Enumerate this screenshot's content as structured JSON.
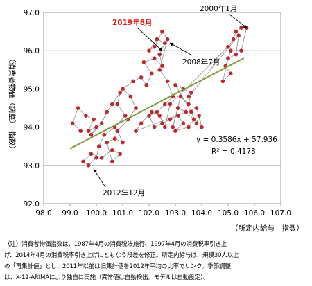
{
  "chart_data": {
    "type": "scatter",
    "xlim": [
      98.0,
      107.0
    ],
    "ylim": [
      92.0,
      97.0
    ],
    "xticks": [
      "98.0",
      "99.0",
      "100.0",
      "101.0",
      "102.0",
      "103.0",
      "104.0",
      "105.0",
      "106.0",
      "107.0"
    ],
    "yticks": [
      "92.0",
      "93.0",
      "94.0",
      "95.0",
      "96.0",
      "97.0"
    ],
    "xlabel": "（所定内給与　指数）",
    "ylabel": "（消費者物価（調整）　指数）",
    "grid": "horizontal",
    "series": [
      {
        "color": "#c0282e",
        "points": [
          [
            99.4,
            93.9
          ],
          [
            99.1,
            94.1
          ],
          [
            99.3,
            94.5
          ],
          [
            99.6,
            94.3
          ],
          [
            99.9,
            94.2
          ],
          [
            99.7,
            93.9
          ],
          [
            100.0,
            94.0
          ],
          [
            99.8,
            93.8
          ],
          [
            100.2,
            94.1
          ],
          [
            100.4,
            94.4
          ],
          [
            100.6,
            94.6
          ],
          [
            100.9,
            94.9
          ],
          [
            100.8,
            94.6
          ],
          [
            101.1,
            94.3
          ],
          [
            100.7,
            94.0
          ],
          [
            100.3,
            93.8
          ],
          [
            100.1,
            93.5
          ],
          [
            100.0,
            93.2
          ],
          [
            99.7,
            93.0
          ],
          [
            99.5,
            93.1
          ],
          [
            99.8,
            93.3
          ],
          [
            100.2,
            93.2
          ],
          [
            100.6,
            93.4
          ],
          [
            100.9,
            93.3
          ],
          [
            100.6,
            93.1
          ],
          [
            100.4,
            93.6
          ],
          [
            100.7,
            93.7
          ],
          [
            101.0,
            93.6
          ],
          [
            100.8,
            93.9
          ],
          [
            101.2,
            94.2
          ],
          [
            101.5,
            94.5
          ],
          [
            101.3,
            94.8
          ],
          [
            101.0,
            95.0
          ],
          [
            101.4,
            95.2
          ],
          [
            101.7,
            95.3
          ],
          [
            101.9,
            95.1
          ],
          [
            102.1,
            95.4
          ],
          [
            101.8,
            95.7
          ],
          [
            102.2,
            95.8
          ],
          [
            102.5,
            95.6
          ],
          [
            102.4,
            95.9
          ],
          [
            102.6,
            96.2
          ],
          [
            102.3,
            96.3
          ],
          [
            102.0,
            96.0
          ],
          [
            102.2,
            96.1
          ],
          [
            102.5,
            96.5
          ],
          [
            102.7,
            96.3
          ],
          [
            102.4,
            95.5
          ],
          [
            102.7,
            95.2
          ],
          [
            102.9,
            94.8
          ],
          [
            102.6,
            94.6
          ],
          [
            102.3,
            94.4
          ],
          [
            102.0,
            94.3
          ],
          [
            102.2,
            94.0
          ],
          [
            102.5,
            94.1
          ],
          [
            102.8,
            94.2
          ],
          [
            103.1,
            94.3
          ],
          [
            103.3,
            94.1
          ],
          [
            103.0,
            93.9
          ],
          [
            103.5,
            94.0
          ],
          [
            103.7,
            94.2
          ],
          [
            103.4,
            94.4
          ],
          [
            103.1,
            94.5
          ],
          [
            102.9,
            94.0
          ],
          [
            103.2,
            94.8
          ],
          [
            103.5,
            94.6
          ],
          [
            103.6,
            94.9
          ],
          [
            103.3,
            95.0
          ],
          [
            103.0,
            95.1
          ],
          [
            103.6,
            94.4
          ],
          [
            103.8,
            94.1
          ],
          [
            103.9,
            94.3
          ],
          [
            104.0,
            94.0
          ],
          [
            103.8,
            94.5
          ],
          [
            101.5,
            93.9
          ],
          [
            101.7,
            94.1
          ],
          [
            102.1,
            94.4
          ],
          [
            102.4,
            94.3
          ],
          [
            102.6,
            94.0
          ],
          [
            102.8,
            94.6
          ],
          [
            105.0,
            96.1
          ],
          [
            105.2,
            96.3
          ],
          [
            105.3,
            96.5
          ],
          [
            105.5,
            96.6
          ],
          [
            105.7,
            96.6
          ],
          [
            105.5,
            96.0
          ],
          [
            105.1,
            96.0
          ],
          [
            104.9,
            95.6
          ],
          [
            105.1,
            95.4
          ],
          [
            104.8,
            95.2
          ],
          [
            105.0,
            95.8
          ],
          [
            105.3,
            95.9
          ],
          [
            105.4,
            96.4
          ],
          [
            103.5,
            94.8
          ]
        ]
      }
    ],
    "trendline": {
      "slope": 0.3586,
      "intercept": 57.936,
      "x_range": [
        99.0,
        105.6
      ],
      "color": "#7f9a3b"
    },
    "equation": "y = 0.3586x + 57.936",
    "r_squared": "R² = 0.4178",
    "annotations": [
      {
        "text": "2000年1月",
        "color": "#000000",
        "target": [
          105.7,
          96.6
        ]
      },
      {
        "text": "2019年8月",
        "color": "#e0201c",
        "target": [
          102.5,
          96.0
        ]
      },
      {
        "text": "2008年7月",
        "color": "#000000",
        "target": [
          102.8,
          96.2
        ]
      },
      {
        "text": "2012年12月",
        "color": "#000000",
        "target": [
          99.9,
          92.9
        ]
      }
    ]
  },
  "note": {
    "line1": "（注）消費者物価指数は、1987年4月の消費税法施行、1997年4月の消費税率引き上",
    "line2": "げ、2014年4月の消費税率引き上げにともなう段差を修正。所定内給与は、規模30人以上",
    "line3": "の「再集計値」とし、2011年以前は旧集計値を2012年平均の比率でリンク。季節調整",
    "line4": "は、X-12-ARIMAにより独自に実施（異常値は自動検出。モデルは自動設定）。"
  }
}
